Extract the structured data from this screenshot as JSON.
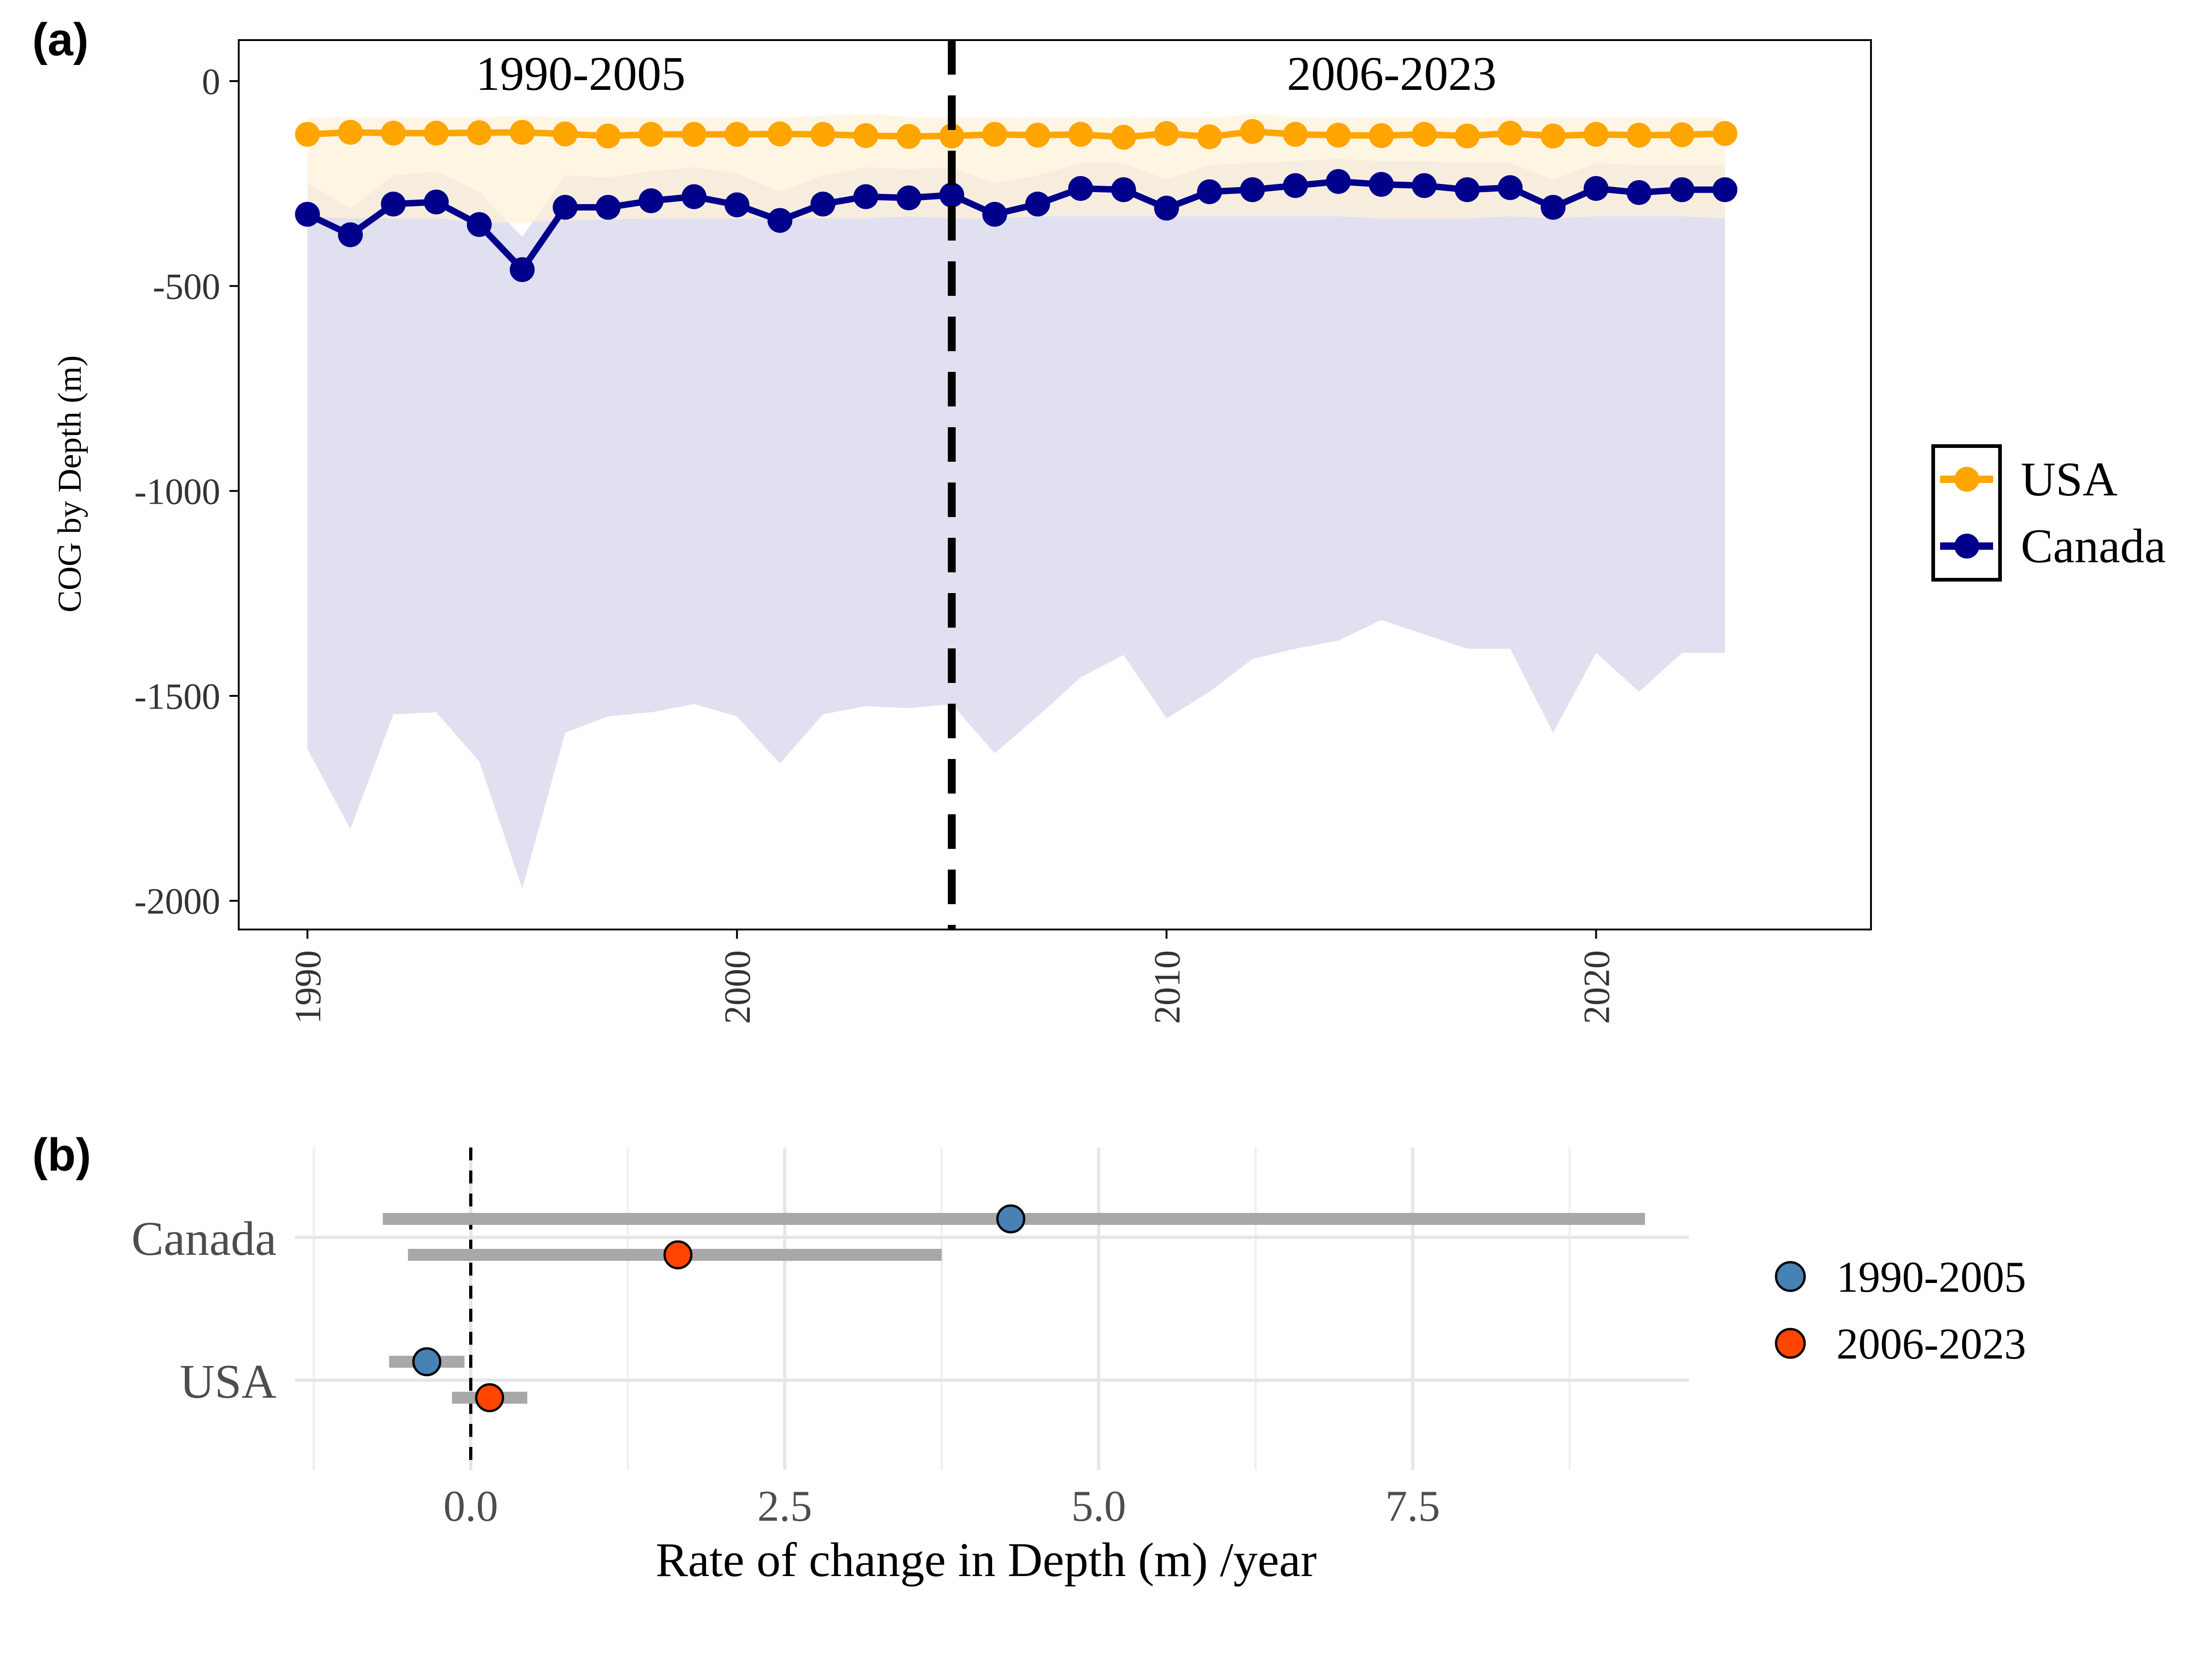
{
  "chart_data": [
    {
      "panel": "(a)",
      "type": "line",
      "ylabel": "COG by Depth (m)",
      "xlabel": "",
      "xlim": [
        1988.4,
        2026.4
      ],
      "ylim": [
        -2070,
        100
      ],
      "x_ticks": [
        1990,
        2000,
        2010,
        2020
      ],
      "x_tick_labels": [
        "1990",
        "2000",
        "2010",
        "2020"
      ],
      "y_ticks": [
        0,
        -500,
        -1000,
        -1500,
        -2000
      ],
      "y_tick_labels": [
        "0",
        "-500",
        "-1000",
        "-1500",
        "-2000"
      ],
      "grid": false,
      "legend_position": "right",
      "period_break": 2005,
      "period_labels": [
        "1990-2005",
        "2006-2023"
      ],
      "x": [
        1990,
        1991,
        1992,
        1993,
        1994,
        1995,
        1996,
        1997,
        1998,
        1999,
        2000,
        2001,
        2002,
        2003,
        2004,
        2005,
        2006,
        2007,
        2008,
        2009,
        2010,
        2011,
        2012,
        2013,
        2014,
        2015,
        2016,
        2017,
        2018,
        2019,
        2020,
        2021,
        2022,
        2023
      ],
      "series": [
        {
          "name": "USA",
          "color": "#FFA500",
          "band_color": "#FFF2D9",
          "values": [
            -130,
            -125,
            -127,
            -127,
            -126,
            -125,
            -129,
            -134,
            -130,
            -130,
            -130,
            -129,
            -130,
            -133,
            -135,
            -134,
            -130,
            -132,
            -130,
            -137,
            -128,
            -136,
            -123,
            -130,
            -132,
            -133,
            -130,
            -134,
            -127,
            -134,
            -130,
            -132,
            -131,
            -128
          ],
          "upper": [
            -90,
            -88,
            -88,
            -88,
            -88,
            -85,
            -88,
            -88,
            -88,
            -88,
            -90,
            -88,
            -85,
            -80,
            -88,
            -88,
            -88,
            -90,
            -88,
            -90,
            -88,
            -90,
            -80,
            -88,
            -90,
            -88,
            -88,
            -90,
            -88,
            -90,
            -88,
            -88,
            -88,
            -88
          ],
          "lower": [
            -330,
            -335,
            -335,
            -335,
            -345,
            -345,
            -340,
            -338,
            -335,
            -335,
            -335,
            -335,
            -335,
            -335,
            -330,
            -335,
            -335,
            -330,
            -330,
            -330,
            -330,
            -330,
            -330,
            -330,
            -330,
            -335,
            -335,
            -335,
            -330,
            -335,
            -330,
            -330,
            -330,
            -335
          ]
        },
        {
          "name": "Canada",
          "color": "#00008B",
          "band_color": "#E0E0F0",
          "values": [
            -325,
            -375,
            -300,
            -295,
            -350,
            -460,
            -308,
            -308,
            -292,
            -282,
            -302,
            -340,
            -300,
            -282,
            -285,
            -278,
            -325,
            -300,
            -262,
            -265,
            -310,
            -270,
            -265,
            -255,
            -245,
            -252,
            -255,
            -265,
            -260,
            -308,
            -262,
            -272,
            -265,
            -265
          ],
          "upper": [
            -250,
            -310,
            -230,
            -220,
            -270,
            -380,
            -230,
            -235,
            -220,
            -210,
            -225,
            -270,
            -230,
            -210,
            -215,
            -210,
            -250,
            -230,
            -200,
            -200,
            -240,
            -205,
            -200,
            -195,
            -190,
            -195,
            -195,
            -200,
            -200,
            -240,
            -200,
            -205,
            -205,
            -205
          ],
          "lower": [
            -1630,
            -1825,
            -1545,
            -1540,
            -1660,
            -1970,
            -1590,
            -1550,
            -1540,
            -1520,
            -1550,
            -1665,
            -1545,
            -1525,
            -1530,
            -1520,
            -1640,
            -1550,
            -1455,
            -1400,
            -1555,
            -1490,
            -1410,
            -1385,
            -1365,
            -1315,
            -1350,
            -1385,
            -1385,
            -1590,
            -1395,
            -1490,
            -1395,
            -1395
          ]
        }
      ]
    },
    {
      "panel": "(b)",
      "type": "scatter",
      "xlabel": "Rate of change in Depth (m) /year",
      "ylabel": "",
      "xlim": [
        -1.4,
        9.7
      ],
      "x_ticks": [
        0.0,
        2.5,
        5.0,
        7.5
      ],
      "x_tick_labels": [
        "0.0",
        "2.5",
        "5.0",
        "7.5"
      ],
      "categories": [
        "Canada",
        "USA"
      ],
      "grid": true,
      "legend_position": "right",
      "reference_line": 0,
      "series": [
        {
          "name": "1990-2005",
          "color": "#4682B4",
          "points": [
            {
              "category": "Canada",
              "estimate": 4.3,
              "low": -0.7,
              "high": 9.35
            },
            {
              "category": "USA",
              "estimate": -0.35,
              "low": -0.65,
              "high": -0.05
            }
          ]
        },
        {
          "name": "2006-2023",
          "color": "#FF4500",
          "points": [
            {
              "category": "Canada",
              "estimate": 1.65,
              "low": -0.5,
              "high": 3.75
            },
            {
              "category": "USA",
              "estimate": 0.15,
              "low": -0.15,
              "high": 0.45
            }
          ]
        }
      ]
    }
  ]
}
